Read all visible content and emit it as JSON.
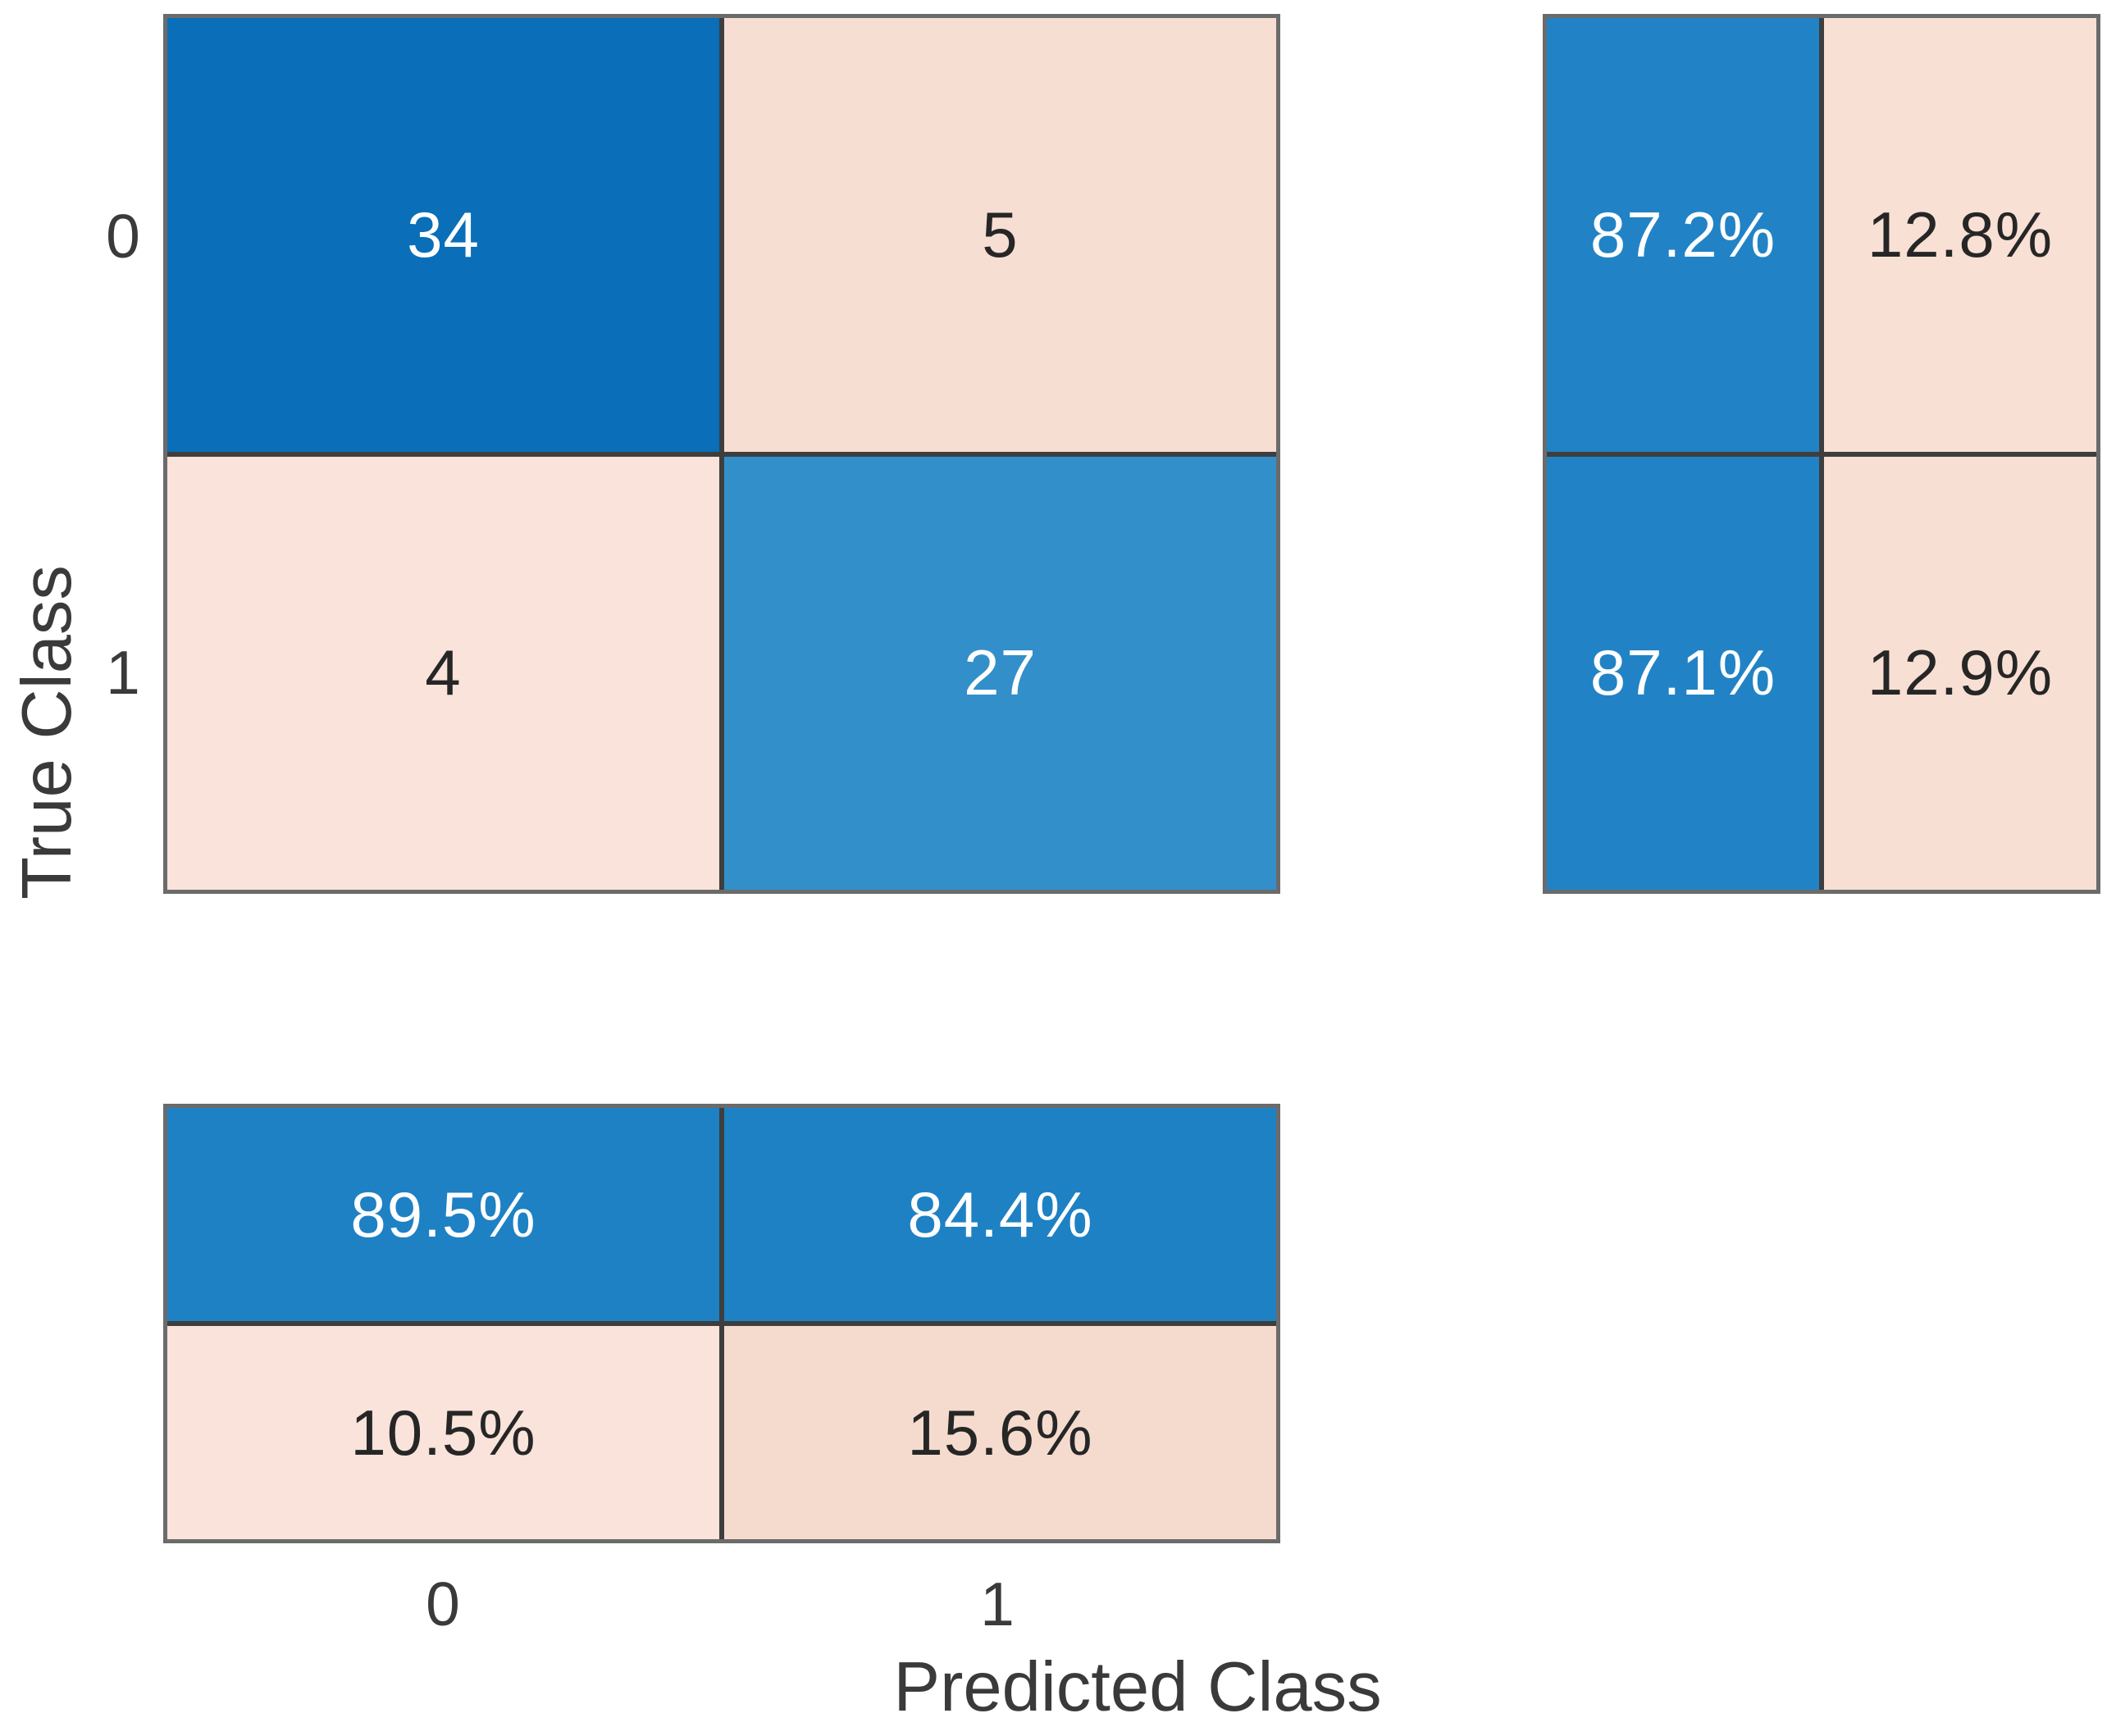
{
  "chart_data": {
    "type": "heatmap",
    "subtype": "confusion_matrix",
    "title": "",
    "xlabel": "Predicted Class",
    "ylabel": "True Class",
    "classes": [
      "0",
      "1"
    ],
    "x_tick_labels": [
      "0",
      "1"
    ],
    "y_tick_labels": [
      "0",
      "1"
    ],
    "counts": [
      [
        34,
        5
      ],
      [
        4,
        27
      ]
    ],
    "row_normalized_pct": [
      [
        "87.2%",
        "12.8%"
      ],
      [
        "87.1%",
        "12.9%"
      ]
    ],
    "column_normalized_pct": [
      [
        "89.5%",
        "84.4%"
      ],
      [
        "10.5%",
        "15.6%"
      ]
    ],
    "legend_position": "none",
    "grid": "on"
  },
  "axes": {
    "xlabel": "Predicted Class",
    "ylabel": "True Class",
    "x_ticks": [
      "0",
      "1"
    ],
    "y_ticks": [
      "0",
      "1"
    ]
  },
  "main_cells": [
    {
      "row": "0",
      "col": "0",
      "label": "34",
      "bg": "#0a6eb8",
      "fg": "#ffffff"
    },
    {
      "row": "0",
      "col": "1",
      "label": "5",
      "bg": "#f7ded2",
      "fg": "#262626"
    },
    {
      "row": "1",
      "col": "0",
      "label": "4",
      "bg": "#f9e3da",
      "fg": "#262626"
    },
    {
      "row": "1",
      "col": "1",
      "label": "27",
      "bg": "#338fc9",
      "fg": "#ffffff"
    }
  ],
  "row_summary_cells": [
    {
      "row": "0",
      "col": "0",
      "label": "87.2%",
      "bg": "#2183c5",
      "fg": "#ffffff"
    },
    {
      "row": "0",
      "col": "1",
      "label": "12.8%",
      "bg": "#f8e0d4",
      "fg": "#262626"
    },
    {
      "row": "1",
      "col": "0",
      "label": "87.1%",
      "bg": "#2183c5",
      "fg": "#ffffff"
    },
    {
      "row": "1",
      "col": "1",
      "label": "12.9%",
      "bg": "#f8dfd3",
      "fg": "#262626"
    }
  ],
  "col_summary_cells": [
    {
      "row": "0",
      "col": "0",
      "label": "89.5%",
      "bg": "#1e81c4",
      "fg": "#ffffff"
    },
    {
      "row": "0",
      "col": "1",
      "label": "84.4%",
      "bg": "#1e81c4",
      "fg": "#ffffff"
    },
    {
      "row": "1",
      "col": "0",
      "label": "10.5%",
      "bg": "#f9e3da",
      "fg": "#262626"
    },
    {
      "row": "1",
      "col": "1",
      "label": "15.6%",
      "bg": "#f5dbce",
      "fg": "#262626"
    }
  ],
  "colors": {
    "background": "#ffffff",
    "grid_line": "#3e3e3e",
    "outer_border": "#6b6b6b",
    "tick_text": "#3a3a3a",
    "diagonal_max_blue": "#0a6eb8",
    "diagonal_blue": "#338fc9",
    "summary_blue": "#2183c5",
    "off_diagonal_tint": "#f7ded2"
  }
}
